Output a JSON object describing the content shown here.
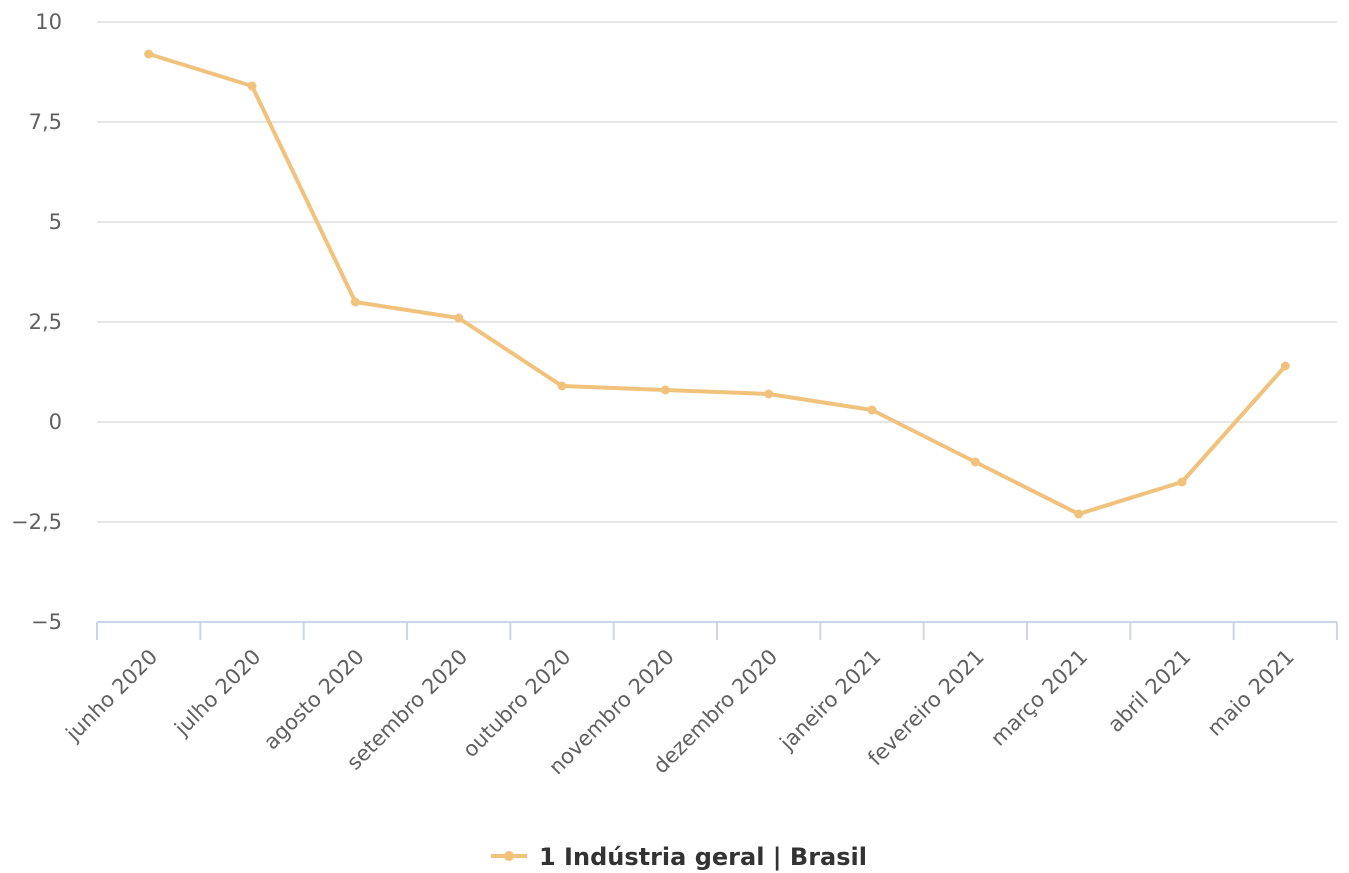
{
  "chart_data": {
    "type": "line",
    "categories": [
      "junho 2020",
      "julho 2020",
      "agosto 2020",
      "setembro 2020",
      "outubro 2020",
      "novembro 2020",
      "dezembro 2020",
      "janeiro 2021",
      "fevereiro 2021",
      "março 2021",
      "abril 2021",
      "maio 2021"
    ],
    "series": [
      {
        "name": "1 Indústria geral | Brasil",
        "color": "#f0c27b",
        "values": [
          9.2,
          8.4,
          3.0,
          2.6,
          0.9,
          0.8,
          0.7,
          0.3,
          -1.0,
          -2.3,
          -1.5,
          1.4
        ]
      }
    ],
    "ylim": [
      -5,
      10
    ],
    "yticks": [
      -5,
      -2.5,
      0,
      2.5,
      5,
      7.5,
      10
    ],
    "ytick_labels": [
      "−5",
      "−2,5",
      "0",
      "2,5",
      "5",
      "7,5",
      "10"
    ],
    "grid": true,
    "legend_position": "bottom-center"
  }
}
